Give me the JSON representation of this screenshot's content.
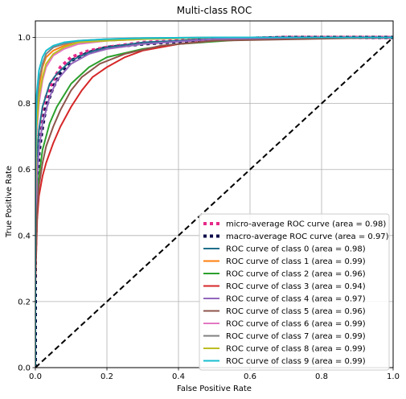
{
  "chart_data": {
    "type": "line",
    "title": "Multi-class ROC",
    "xlabel": "False Positive Rate",
    "ylabel": "True Positive Rate",
    "xlim": [
      0.0,
      1.0
    ],
    "ylim": [
      0.0,
      1.05
    ],
    "xticks": [
      "0.0",
      "0.2",
      "0.4",
      "0.6",
      "0.8",
      "1.0"
    ],
    "yticks": [
      "0.0",
      "0.2",
      "0.4",
      "0.6",
      "0.8",
      "1.0"
    ],
    "grid": true,
    "legend_position": "lower-right",
    "series": [
      {
        "name": "micro-average ROC curve (area = 0.98)",
        "color": "#e7298a",
        "style": "dotted",
        "width": 4,
        "x": [
          0,
          0,
          0.005,
          0.01,
          0.02,
          0.03,
          0.05,
          0.07,
          0.1,
          0.15,
          0.2,
          0.3,
          0.5,
          0.7,
          1.0
        ],
        "y": [
          0,
          0.4,
          0.62,
          0.7,
          0.77,
          0.82,
          0.87,
          0.91,
          0.94,
          0.96,
          0.97,
          0.985,
          0.995,
          1.0,
          1.0
        ]
      },
      {
        "name": "macro-average ROC curve (area = 0.97)",
        "color": "#0b0b4a",
        "style": "dotted",
        "width": 4,
        "x": [
          0,
          0,
          0.005,
          0.01,
          0.02,
          0.03,
          0.05,
          0.07,
          0.1,
          0.15,
          0.2,
          0.3,
          0.5,
          0.7,
          1.0
        ],
        "y": [
          0,
          0.35,
          0.55,
          0.65,
          0.73,
          0.79,
          0.85,
          0.89,
          0.93,
          0.955,
          0.97,
          0.98,
          0.995,
          1.0,
          1.0
        ]
      },
      {
        "name": "ROC curve of class 0 (area = 0.98)",
        "color": "#1f6f8b",
        "style": "solid",
        "width": 2,
        "x": [
          0,
          0,
          0.003,
          0.01,
          0.02,
          0.04,
          0.06,
          0.1,
          0.15,
          0.2,
          0.3,
          0.5,
          1.0
        ],
        "y": [
          0,
          0.4,
          0.62,
          0.72,
          0.79,
          0.86,
          0.89,
          0.93,
          0.955,
          0.97,
          0.985,
          0.995,
          1.0
        ]
      },
      {
        "name": "ROC curve of class 1 (area = 0.99)",
        "color": "#ff7f0e",
        "style": "solid",
        "width": 2,
        "x": [
          0,
          0,
          0.003,
          0.01,
          0.02,
          0.03,
          0.05,
          0.08,
          0.12,
          0.2,
          0.3,
          0.5,
          1.0
        ],
        "y": [
          0,
          0.5,
          0.75,
          0.85,
          0.91,
          0.94,
          0.96,
          0.975,
          0.985,
          0.99,
          0.995,
          1.0,
          1.0
        ]
      },
      {
        "name": "ROC curve of class 2 (area = 0.96)",
        "color": "#2ca02c",
        "style": "solid",
        "width": 2,
        "x": [
          0,
          0,
          0.005,
          0.01,
          0.02,
          0.04,
          0.06,
          0.1,
          0.15,
          0.2,
          0.3,
          0.4,
          0.6,
          1.0
        ],
        "y": [
          0,
          0.3,
          0.5,
          0.58,
          0.66,
          0.74,
          0.79,
          0.86,
          0.91,
          0.94,
          0.965,
          0.98,
          0.995,
          1.0
        ]
      },
      {
        "name": "ROC curve of class 3 (area = 0.94)",
        "color": "#d62728",
        "style": "solid",
        "width": 2,
        "x": [
          0,
          0,
          0.005,
          0.01,
          0.02,
          0.03,
          0.05,
          0.07,
          0.1,
          0.13,
          0.16,
          0.2,
          0.25,
          0.3,
          0.4,
          0.5,
          0.7,
          1.0
        ],
        "y": [
          0,
          0.25,
          0.45,
          0.52,
          0.58,
          0.62,
          0.68,
          0.73,
          0.79,
          0.84,
          0.88,
          0.91,
          0.94,
          0.96,
          0.98,
          0.99,
          0.998,
          1.0
        ]
      },
      {
        "name": "ROC curve of class 4 (area = 0.97)",
        "color": "#9467bd",
        "style": "solid",
        "width": 2,
        "x": [
          0,
          0,
          0.005,
          0.01,
          0.02,
          0.04,
          0.06,
          0.1,
          0.15,
          0.2,
          0.3,
          0.5,
          1.0
        ],
        "y": [
          0,
          0.35,
          0.58,
          0.66,
          0.74,
          0.82,
          0.87,
          0.92,
          0.95,
          0.965,
          0.98,
          0.995,
          1.0
        ]
      },
      {
        "name": "ROC curve of class 5 (area = 0.96)",
        "color": "#8c564b",
        "style": "solid",
        "width": 2,
        "x": [
          0,
          0,
          0.005,
          0.01,
          0.02,
          0.03,
          0.05,
          0.07,
          0.1,
          0.13,
          0.18,
          0.25,
          0.35,
          0.5,
          1.0
        ],
        "y": [
          0,
          0.28,
          0.48,
          0.55,
          0.62,
          0.67,
          0.73,
          0.78,
          0.84,
          0.88,
          0.92,
          0.95,
          0.975,
          0.99,
          1.0
        ]
      },
      {
        "name": "ROC curve of class 6 (area = 0.99)",
        "color": "#e377c2",
        "style": "solid",
        "width": 2,
        "x": [
          0,
          0,
          0.003,
          0.01,
          0.02,
          0.03,
          0.05,
          0.08,
          0.12,
          0.2,
          0.3,
          0.5,
          1.0
        ],
        "y": [
          0,
          0.45,
          0.7,
          0.8,
          0.87,
          0.91,
          0.945,
          0.965,
          0.98,
          0.99,
          0.995,
          1.0,
          1.0
        ]
      },
      {
        "name": "ROC curve of class 7 (area = 0.99)",
        "color": "#7f7f7f",
        "style": "solid",
        "width": 2,
        "x": [
          0,
          0,
          0.003,
          0.01,
          0.02,
          0.03,
          0.05,
          0.08,
          0.12,
          0.2,
          0.3,
          0.5,
          1.0
        ],
        "y": [
          0,
          0.55,
          0.78,
          0.87,
          0.92,
          0.95,
          0.97,
          0.98,
          0.99,
          0.995,
          0.998,
          1.0,
          1.0
        ]
      },
      {
        "name": "ROC curve of class 8 (area = 0.99)",
        "color": "#bcbd22",
        "style": "solid",
        "width": 2,
        "x": [
          0,
          0,
          0.003,
          0.01,
          0.02,
          0.03,
          0.05,
          0.08,
          0.12,
          0.2,
          0.3,
          0.5,
          1.0
        ],
        "y": [
          0,
          0.5,
          0.72,
          0.82,
          0.88,
          0.92,
          0.95,
          0.97,
          0.985,
          0.99,
          0.995,
          1.0,
          1.0
        ]
      },
      {
        "name": "ROC curve of class 9 (area = 0.99)",
        "color": "#17becf",
        "style": "solid",
        "width": 2,
        "x": [
          0,
          0,
          0.003,
          0.01,
          0.02,
          0.03,
          0.05,
          0.08,
          0.12,
          0.2,
          0.3,
          0.5,
          1.0
        ],
        "y": [
          0,
          0.6,
          0.82,
          0.9,
          0.94,
          0.96,
          0.975,
          0.985,
          0.99,
          0.995,
          0.998,
          1.0,
          1.0
        ]
      },
      {
        "name": "",
        "color": "#000000",
        "style": "dashed",
        "width": 2,
        "x": [
          0,
          1
        ],
        "y": [
          0,
          1
        ]
      }
    ]
  }
}
